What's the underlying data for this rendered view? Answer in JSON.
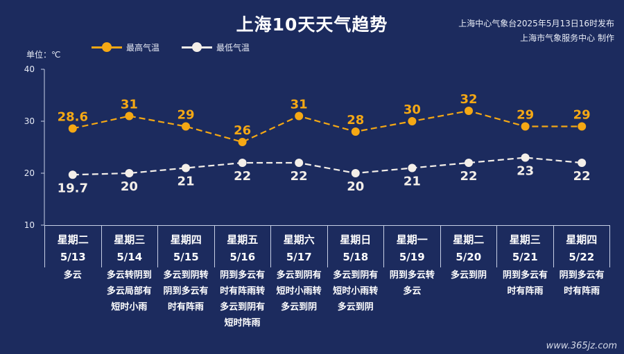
{
  "title": "上海10天天气趋势",
  "publisher": {
    "line1": "上海中心气象台2025年5月13日16时发布",
    "line2": "上海市气象服务中心 制作"
  },
  "unit_label": "单位：℃",
  "legend": {
    "high": "最高气温",
    "low": "最低气温"
  },
  "colors": {
    "background": "#1c2b5e",
    "high": "#f5a814",
    "low": "#f4efe9",
    "axis": "#c8d0e6"
  },
  "chart_data": {
    "type": "line",
    "categories": [
      "5/13",
      "5/14",
      "5/15",
      "5/16",
      "5/17",
      "5/18",
      "5/19",
      "5/20",
      "5/21",
      "5/22"
    ],
    "series": [
      {
        "name": "最高气温",
        "values": [
          28.6,
          31,
          29,
          26,
          31,
          28,
          30,
          32,
          29,
          29
        ]
      },
      {
        "name": "最低气温",
        "values": [
          19.7,
          20,
          21,
          22,
          22,
          20,
          21,
          22,
          23,
          22
        ]
      }
    ],
    "y_ticks": [
      "10",
      "20",
      "30",
      "40"
    ],
    "ylim": [
      10,
      40
    ],
    "grid": false,
    "legend_position": "top-left",
    "line_style": "dashed"
  },
  "days": [
    {
      "weekday": "星期二",
      "date": "5/13",
      "weather": "多云"
    },
    {
      "weekday": "星期三",
      "date": "5/14",
      "weather": "多云转阴到多云局部有短时小雨"
    },
    {
      "weekday": "星期四",
      "date": "5/15",
      "weather": "多云到阴转阴到多云有时有阵雨"
    },
    {
      "weekday": "星期五",
      "date": "5/16",
      "weather": "阴到多云有时有阵雨转多云到阴有短时阵雨"
    },
    {
      "weekday": "星期六",
      "date": "5/17",
      "weather": "多云到阴有短时小雨转多云到阴"
    },
    {
      "weekday": "星期日",
      "date": "5/18",
      "weather": "多云到阴有短时小雨转多云到阴"
    },
    {
      "weekday": "星期一",
      "date": "5/19",
      "weather": "阴到多云转多云"
    },
    {
      "weekday": "星期二",
      "date": "5/20",
      "weather": "多云到阴"
    },
    {
      "weekday": "星期三",
      "date": "5/21",
      "weather": "阴到多云有时有阵雨"
    },
    {
      "weekday": "星期四",
      "date": "5/22",
      "weather": "阴到多云有时有阵雨"
    }
  ],
  "watermark": "www.365jz.com"
}
